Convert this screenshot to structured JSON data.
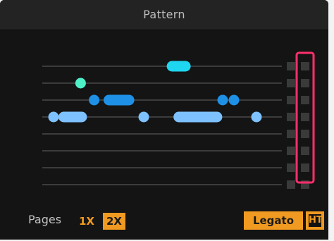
{
  "title": "Pattern",
  "colors": {
    "panel": "#141414",
    "header": "#232323",
    "line": "#4a4a4a",
    "note_cyan": "#1fd6f0",
    "note_teal": "#4ef0c8",
    "note_blue": "#1e90e6",
    "note_lightblue": "#7ec1ff",
    "accent_orange": "#f09a21",
    "highlight_pink": "#ff2f6d",
    "step_cell": "#3a3a3a"
  },
  "pattern": {
    "rows": 8,
    "notes": [
      {
        "row": 0,
        "start": 0.58,
        "end": 0.63,
        "color": "note_cyan"
      },
      {
        "row": 1,
        "start": 0.17,
        "end": 0.17,
        "color": "note_teal"
      },
      {
        "row": 2,
        "start": 0.23,
        "end": 0.23,
        "color": "note_blue"
      },
      {
        "row": 2,
        "start": 0.3,
        "end": 0.38,
        "color": "note_blue"
      },
      {
        "row": 2,
        "start": 0.8,
        "end": 0.8,
        "color": "note_blue"
      },
      {
        "row": 2,
        "start": 0.85,
        "end": 0.85,
        "color": "note_blue"
      },
      {
        "row": 3,
        "start": 0.05,
        "end": 0.05,
        "color": "note_lightblue"
      },
      {
        "row": 3,
        "start": 0.1,
        "end": 0.17,
        "color": "note_lightblue"
      },
      {
        "row": 3,
        "start": 0.45,
        "end": 0.45,
        "color": "note_lightblue"
      },
      {
        "row": 3,
        "start": 0.61,
        "end": 0.77,
        "color": "note_lightblue"
      },
      {
        "row": 3,
        "start": 0.95,
        "end": 0.95,
        "color": "note_lightblue"
      }
    ]
  },
  "footer": {
    "pages_label": "Pages",
    "page_options": [
      "1X",
      "2X"
    ],
    "selected_page": "2X",
    "legato_label": "Legato",
    "ht_label": "HT"
  }
}
